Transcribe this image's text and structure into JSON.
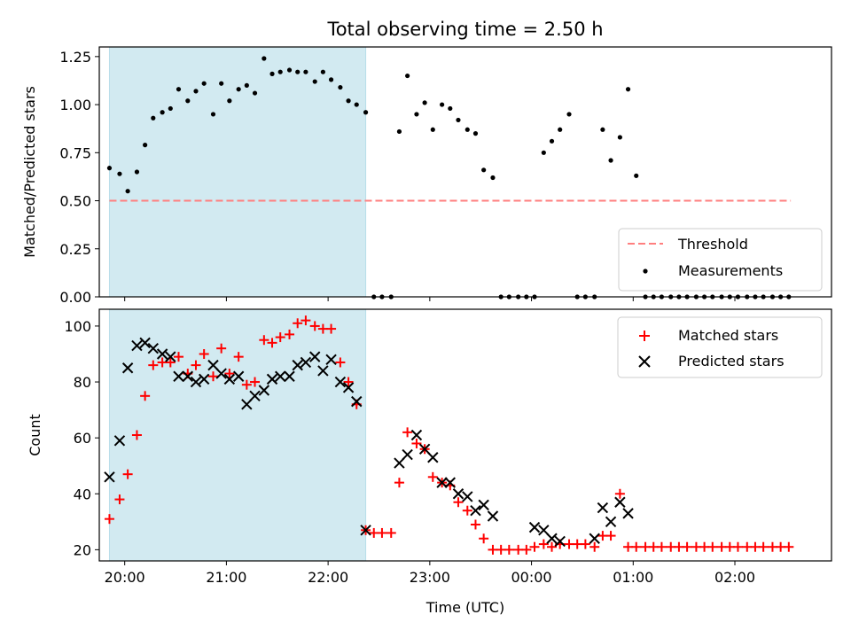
{
  "title": "Total observing time = 2.50 h",
  "colors": {
    "highlight": "#add8e6",
    "threshold": "#ff7f7f",
    "measurement": "#000000",
    "matched": "#ff0000",
    "predicted": "#000000"
  },
  "chart_data": [
    {
      "type": "scatter",
      "ylabel": "Matched/Predicted stars",
      "xlim": [
        -0.25,
        6.95
      ],
      "ylim": [
        0,
        1.3
      ],
      "yticks": [
        0.0,
        0.25,
        0.5,
        0.75,
        1.0,
        1.25
      ],
      "ytick_labels": [
        "0.00",
        "0.25",
        "0.50",
        "0.75",
        "1.00",
        "1.25"
      ],
      "shaded_span": [
        -0.15,
        2.37
      ],
      "threshold": {
        "name": "Threshold",
        "value": 0.5,
        "x": [
          -0.15,
          6.55
        ],
        "style": "dashed"
      },
      "legend": {
        "position": "lower right",
        "entries": [
          "Threshold",
          "Measurements"
        ]
      },
      "series": [
        {
          "name": "Measurements",
          "marker": "point",
          "x": [
            -0.15,
            -0.05,
            0.03,
            0.12,
            0.2,
            0.28,
            0.37,
            0.45,
            0.53,
            0.62,
            0.7,
            0.78,
            0.87,
            0.95,
            1.03,
            1.12,
            1.2,
            1.28,
            1.37,
            1.45,
            1.53,
            1.62,
            1.7,
            1.78,
            1.87,
            1.95,
            2.03,
            2.12,
            2.2,
            2.28,
            2.37,
            2.45,
            2.53,
            2.62,
            2.7,
            2.78,
            2.87,
            2.95,
            3.03,
            3.12,
            3.2,
            3.28,
            3.37,
            3.45,
            3.53,
            3.62,
            3.7,
            3.78,
            3.87,
            3.95,
            4.03,
            4.12,
            4.2,
            4.28,
            4.37,
            4.45,
            4.53,
            4.62,
            4.7,
            4.78,
            4.87,
            4.95,
            5.03,
            5.12,
            5.2,
            5.28,
            5.37,
            5.45,
            5.53,
            5.62,
            5.7,
            5.78,
            5.87,
            5.95,
            6.03,
            6.12,
            6.2,
            6.28,
            6.37,
            6.45,
            6.53
          ],
          "y": [
            0.67,
            0.64,
            0.55,
            0.65,
            0.79,
            0.93,
            0.96,
            0.98,
            1.08,
            1.02,
            1.07,
            1.11,
            0.95,
            1.11,
            1.02,
            1.08,
            1.1,
            1.06,
            1.24,
            1.16,
            1.17,
            1.18,
            1.17,
            1.17,
            1.12,
            1.17,
            1.13,
            1.09,
            1.02,
            1.0,
            0.96,
            0,
            0,
            0,
            0.86,
            1.15,
            0.95,
            1.01,
            0.87,
            1.0,
            0.98,
            0.92,
            0.87,
            0.85,
            0.66,
            0.62,
            0,
            0,
            0,
            0,
            0,
            0.75,
            0.81,
            0.87,
            0.95,
            0,
            0,
            0,
            0.87,
            0.71,
            0.83,
            1.08,
            0.63,
            0,
            0,
            0,
            0,
            0,
            0,
            0,
            0,
            0,
            0,
            0,
            0,
            0,
            0,
            0,
            0,
            0,
            0
          ]
        }
      ]
    },
    {
      "type": "scatter",
      "xlabel": "Time (UTC)",
      "ylabel": "Count",
      "xlim": [
        -0.25,
        6.95
      ],
      "ylim": [
        16,
        106
      ],
      "yticks": [
        20,
        40,
        60,
        80,
        100
      ],
      "ytick_labels": [
        "20",
        "40",
        "60",
        "80",
        "100"
      ],
      "xticks": [
        0,
        1,
        2,
        3,
        4,
        5,
        6
      ],
      "xtick_labels": [
        "20:00",
        "21:00",
        "22:00",
        "23:00",
        "00:00",
        "01:00",
        "02:00"
      ],
      "shaded_span": [
        -0.15,
        2.37
      ],
      "legend": {
        "position": "upper right",
        "entries": [
          "Matched stars",
          "Predicted stars"
        ]
      },
      "series": [
        {
          "name": "Matched stars",
          "marker": "plus",
          "x": [
            -0.15,
            -0.05,
            0.03,
            0.12,
            0.2,
            0.28,
            0.37,
            0.45,
            0.53,
            0.62,
            0.7,
            0.78,
            0.87,
            0.95,
            1.03,
            1.12,
            1.2,
            1.28,
            1.37,
            1.45,
            1.53,
            1.62,
            1.7,
            1.78,
            1.87,
            1.95,
            2.03,
            2.12,
            2.2,
            2.28,
            2.37,
            2.45,
            2.53,
            2.62,
            2.7,
            2.78,
            2.87,
            2.95,
            3.03,
            3.12,
            3.2,
            3.28,
            3.37,
            3.45,
            3.53,
            3.62,
            3.7,
            3.78,
            3.87,
            3.95,
            4.03,
            4.12,
            4.2,
            4.28,
            4.37,
            4.45,
            4.53,
            4.62,
            4.7,
            4.78,
            4.87,
            4.95,
            5.03,
            5.12,
            5.2,
            5.28,
            5.37,
            5.45,
            5.53,
            5.62,
            5.7,
            5.78,
            5.87,
            5.95,
            6.03,
            6.12,
            6.2,
            6.28,
            6.37,
            6.45,
            6.53
          ],
          "y": [
            31,
            38,
            47,
            61,
            75,
            86,
            87,
            87,
            89,
            83,
            86,
            90,
            82,
            92,
            83,
            89,
            79,
            80,
            95,
            94,
            96,
            97,
            101,
            102,
            100,
            99,
            99,
            87,
            80,
            72,
            27,
            26,
            26,
            26,
            44,
            62,
            58,
            56,
            46,
            44,
            43,
            37,
            34,
            29,
            24,
            20,
            20,
            20,
            20,
            20,
            21,
            22,
            21,
            22,
            22,
            22,
            22,
            21,
            25,
            25,
            40,
            21,
            21,
            21,
            21,
            21,
            21,
            21,
            21,
            21,
            21,
            21,
            21,
            21,
            21,
            21,
            21,
            21,
            21,
            21,
            21
          ]
        },
        {
          "name": "Predicted stars",
          "marker": "x",
          "x": [
            -0.15,
            -0.05,
            0.03,
            0.12,
            0.2,
            0.28,
            0.37,
            0.45,
            0.53,
            0.62,
            0.7,
            0.78,
            0.87,
            0.95,
            1.03,
            1.12,
            1.2,
            1.28,
            1.37,
            1.45,
            1.53,
            1.62,
            1.7,
            1.78,
            1.87,
            1.95,
            2.03,
            2.12,
            2.2,
            2.28,
            2.37,
            2.7,
            2.78,
            2.87,
            2.95,
            3.03,
            3.12,
            3.2,
            3.28,
            3.37,
            3.45,
            3.53,
            3.62,
            4.03,
            4.12,
            4.2,
            4.28,
            4.62,
            4.7,
            4.78,
            4.87,
            4.95
          ],
          "y": [
            46,
            59,
            85,
            93,
            94,
            92,
            90,
            89,
            82,
            82,
            80,
            81,
            86,
            83,
            81,
            82,
            72,
            75,
            77,
            81,
            82,
            82,
            86,
            87,
            89,
            84,
            88,
            80,
            78,
            73,
            27,
            51,
            54,
            61,
            56,
            53,
            44,
            44,
            40,
            39,
            34,
            36,
            32,
            28,
            27,
            24,
            23,
            24,
            35,
            30,
            37,
            33
          ]
        }
      ]
    }
  ]
}
